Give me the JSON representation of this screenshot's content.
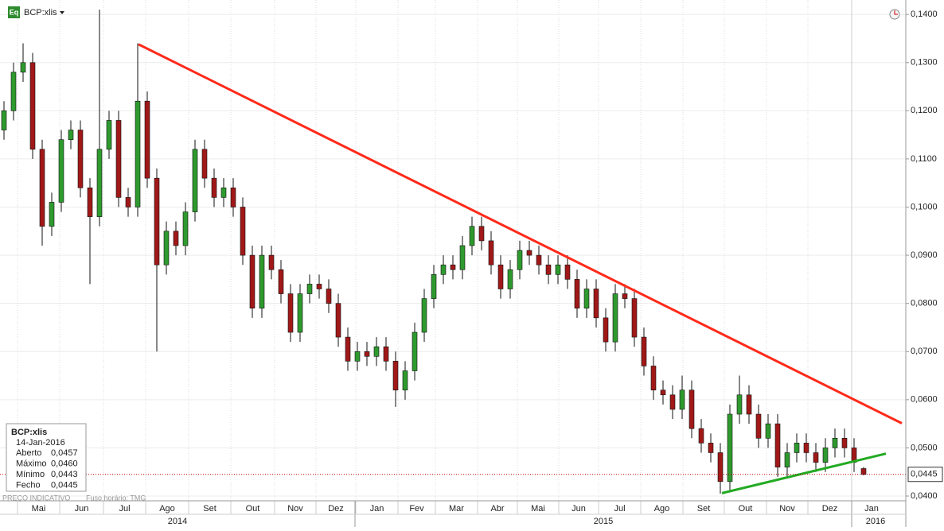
{
  "header": {
    "icon": "Eq",
    "symbol": "BCP:xlis"
  },
  "chart_data": {
    "type": "candlestick",
    "open": [
      0.116,
      0.12,
      0.128,
      0.13,
      0.112,
      0.096,
      0.101,
      0.114,
      0.116,
      0.104,
      0.098,
      0.112,
      0.118,
      0.102,
      0.1,
      0.122,
      0.106,
      0.088,
      0.095,
      0.092,
      0.099,
      0.112,
      0.106,
      0.102,
      0.104,
      0.1,
      0.09,
      0.079,
      0.09,
      0.087,
      0.082,
      0.074,
      0.082,
      0.084,
      0.083,
      0.08,
      0.073,
      0.068,
      0.07,
      0.069,
      0.071,
      0.068,
      0.062,
      0.066,
      0.074,
      0.081,
      0.086,
      0.088,
      0.087,
      0.092,
      0.096,
      0.093,
      0.088,
      0.083,
      0.087,
      0.091,
      0.09,
      0.088,
      0.086,
      0.088,
      0.085,
      0.079,
      0.083,
      0.077,
      0.072,
      0.082,
      0.081,
      0.073,
      0.067,
      0.062,
      0.061,
      0.058,
      0.062,
      0.054,
      0.051,
      0.049,
      0.043,
      0.057,
      0.061,
      0.057,
      0.052,
      0.055,
      0.046,
      0.049,
      0.051,
      0.049,
      0.047,
      0.05,
      0.052,
      0.05,
      0.0457
    ],
    "high": [
      0.122,
      0.13,
      0.134,
      0.132,
      0.114,
      0.103,
      0.116,
      0.118,
      0.118,
      0.106,
      0.141,
      0.12,
      0.12,
      0.104,
      0.134,
      0.124,
      0.108,
      0.097,
      0.097,
      0.101,
      0.114,
      0.114,
      0.108,
      0.106,
      0.106,
      0.102,
      0.092,
      0.092,
      0.092,
      0.089,
      0.084,
      0.084,
      0.086,
      0.086,
      0.085,
      0.082,
      0.075,
      0.072,
      0.072,
      0.073,
      0.073,
      0.07,
      0.068,
      0.076,
      0.083,
      0.088,
      0.09,
      0.09,
      0.094,
      0.098,
      0.098,
      0.095,
      0.09,
      0.089,
      0.093,
      0.093,
      0.092,
      0.09,
      0.09,
      0.09,
      0.087,
      0.085,
      0.085,
      0.079,
      0.084,
      0.084,
      0.083,
      0.075,
      0.069,
      0.064,
      0.063,
      0.065,
      0.064,
      0.056,
      0.053,
      0.051,
      0.059,
      0.065,
      0.063,
      0.059,
      0.057,
      0.057,
      0.051,
      0.053,
      0.053,
      0.051,
      0.052,
      0.054,
      0.054,
      0.052,
      0.046
    ],
    "low": [
      0.114,
      0.118,
      0.126,
      0.11,
      0.092,
      0.094,
      0.099,
      0.112,
      0.102,
      0.084,
      0.096,
      0.11,
      0.1,
      0.098,
      0.098,
      0.104,
      0.07,
      0.086,
      0.09,
      0.09,
      0.097,
      0.104,
      0.1,
      0.1,
      0.098,
      0.088,
      0.077,
      0.077,
      0.085,
      0.08,
      0.072,
      0.072,
      0.08,
      0.081,
      0.078,
      0.071,
      0.066,
      0.066,
      0.067,
      0.067,
      0.066,
      0.0585,
      0.06,
      0.064,
      0.072,
      0.079,
      0.084,
      0.085,
      0.085,
      0.09,
      0.091,
      0.086,
      0.081,
      0.081,
      0.085,
      0.088,
      0.086,
      0.084,
      0.084,
      0.083,
      0.077,
      0.077,
      0.075,
      0.07,
      0.07,
      0.079,
      0.071,
      0.065,
      0.06,
      0.059,
      0.056,
      0.056,
      0.052,
      0.049,
      0.047,
      0.0405,
      0.041,
      0.055,
      0.055,
      0.05,
      0.05,
      0.044,
      0.044,
      0.047,
      0.047,
      0.045,
      0.045,
      0.048,
      0.048,
      0.045,
      0.0443
    ],
    "close": [
      0.12,
      0.128,
      0.13,
      0.112,
      0.096,
      0.101,
      0.114,
      0.116,
      0.104,
      0.098,
      0.112,
      0.118,
      0.102,
      0.1,
      0.122,
      0.106,
      0.088,
      0.095,
      0.092,
      0.099,
      0.112,
      0.106,
      0.102,
      0.104,
      0.1,
      0.09,
      0.079,
      0.09,
      0.087,
      0.082,
      0.074,
      0.082,
      0.084,
      0.083,
      0.08,
      0.073,
      0.068,
      0.07,
      0.069,
      0.071,
      0.068,
      0.062,
      0.066,
      0.074,
      0.081,
      0.086,
      0.088,
      0.087,
      0.092,
      0.096,
      0.093,
      0.088,
      0.083,
      0.087,
      0.091,
      0.09,
      0.088,
      0.086,
      0.088,
      0.085,
      0.079,
      0.083,
      0.077,
      0.072,
      0.082,
      0.081,
      0.073,
      0.067,
      0.062,
      0.061,
      0.058,
      0.062,
      0.054,
      0.051,
      0.049,
      0.043,
      0.057,
      0.061,
      0.057,
      0.052,
      0.055,
      0.046,
      0.049,
      0.051,
      0.049,
      0.047,
      0.05,
      0.052,
      0.05,
      0.047,
      0.0445
    ],
    "up_color": "#2e9a2e",
    "down_color": "#a01818",
    "ylim": [
      0.04,
      0.143
    ],
    "yticks": [
      {
        "value": 0.04,
        "label": "0,0400"
      },
      {
        "value": 0.05,
        "label": "0,0500"
      },
      {
        "value": 0.06,
        "label": "0,0600"
      },
      {
        "value": 0.07,
        "label": "0,0700"
      },
      {
        "value": 0.08,
        "label": "0,0800"
      },
      {
        "value": 0.09,
        "label": "0,0900"
      },
      {
        "value": 0.1,
        "label": "0,1000"
      },
      {
        "value": 0.11,
        "label": "0,1100"
      },
      {
        "value": 0.12,
        "label": "0,1200"
      },
      {
        "value": 0.13,
        "label": "0,1300"
      },
      {
        "value": 0.14,
        "label": "0,1400"
      }
    ],
    "months": [
      "Mai",
      "Jun",
      "Jul",
      "Ago",
      "Set",
      "Out",
      "Nov",
      "Dez",
      "Jan",
      "Fev",
      "Mar",
      "Abr",
      "Mai",
      "Jun",
      "Jul",
      "Ago",
      "Set",
      "Out",
      "Nov",
      "Dez",
      "Jan"
    ],
    "years": [
      "2014",
      "2015",
      "2016"
    ],
    "last_price": {
      "value": 0.0445,
      "label": "0,0445",
      "color": "#c00000"
    },
    "trendlines": [
      {
        "color": "#ff2a1a",
        "values": [
          0.1338,
          0.0551
        ]
      },
      {
        "color": "#22aa22",
        "values": [
          0.0406,
          0.0488
        ]
      }
    ],
    "grid": true
  },
  "info_box": {
    "title": "BCP:xlis",
    "date": "14-Jan-2016",
    "rows": [
      [
        "Aberto",
        "0,0457"
      ],
      [
        "Máximo",
        "0,0460"
      ],
      [
        "Mínimo",
        "0,0443"
      ],
      [
        "Fecho",
        "0,0445"
      ]
    ]
  },
  "footer": {
    "label": "PREÇO INDICATIVO",
    "timezone": "Fuso horário: TMG"
  }
}
